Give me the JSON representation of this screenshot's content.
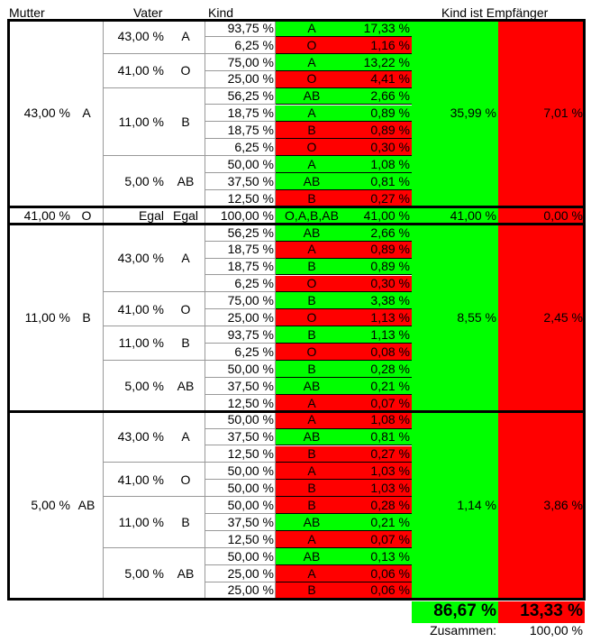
{
  "header": {
    "mother": "Mutter",
    "father": "Vater",
    "child": "Kind",
    "recipient": "Kind ist Empfänger"
  },
  "colors": {
    "good": "#00ff00",
    "bad": "#ff0000",
    "line": "#000000",
    "thin": "#999999"
  },
  "mothers": [
    {
      "pct": "43,00 %",
      "type": "A",
      "yes": "35,99 %",
      "no": "7,01 %",
      "fathers": [
        {
          "pct": "43,00 %",
          "type": "A",
          "kids": [
            {
              "p": "93,75 %",
              "t": "A",
              "v": "17,33 %",
              "ok": true
            },
            {
              "p": "6,25 %",
              "t": "O",
              "v": "1,16 %",
              "ok": false
            }
          ]
        },
        {
          "pct": "41,00 %",
          "type": "O",
          "kids": [
            {
              "p": "75,00 %",
              "t": "A",
              "v": "13,22 %",
              "ok": true
            },
            {
              "p": "25,00 %",
              "t": "O",
              "v": "4,41 %",
              "ok": false
            }
          ]
        },
        {
          "pct": "11,00 %",
          "type": "B",
          "kids": [
            {
              "p": "56,25 %",
              "t": "AB",
              "v": "2,66 %",
              "ok": true
            },
            {
              "p": "18,75 %",
              "t": "A",
              "v": "0,89 %",
              "ok": true
            },
            {
              "p": "18,75 %",
              "t": "B",
              "v": "0,89 %",
              "ok": false
            },
            {
              "p": "6,25 %",
              "t": "O",
              "v": "0,30 %",
              "ok": false
            }
          ]
        },
        {
          "pct": "5,00 %",
          "type": "AB",
          "kids": [
            {
              "p": "50,00 %",
              "t": "A",
              "v": "1,08 %",
              "ok": true
            },
            {
              "p": "37,50 %",
              "t": "AB",
              "v": "0,81 %",
              "ok": true
            },
            {
              "p": "12,50 %",
              "t": "B",
              "v": "0,27 %",
              "ok": false
            }
          ]
        }
      ]
    },
    {
      "pct": "41,00 %",
      "type": "O",
      "yes": "41,00 %",
      "no": "0,00 %",
      "fathers": [
        {
          "pct": "Egal",
          "type": "Egal",
          "kids": [
            {
              "p": "100,00 %",
              "t": "O,A,B,AB",
              "v": "41,00 %",
              "ok": true
            }
          ]
        }
      ]
    },
    {
      "pct": "11,00 %",
      "type": "B",
      "yes": "8,55 %",
      "no": "2,45 %",
      "fathers": [
        {
          "pct": "43,00 %",
          "type": "A",
          "kids": [
            {
              "p": "56,25 %",
              "t": "AB",
              "v": "2,66 %",
              "ok": true
            },
            {
              "p": "18,75 %",
              "t": "A",
              "v": "0,89 %",
              "ok": false
            },
            {
              "p": "18,75 %",
              "t": "B",
              "v": "0,89 %",
              "ok": true
            },
            {
              "p": "6,25 %",
              "t": "O",
              "v": "0,30 %",
              "ok": false
            }
          ]
        },
        {
          "pct": "41,00 %",
          "type": "O",
          "kids": [
            {
              "p": "75,00 %",
              "t": "B",
              "v": "3,38 %",
              "ok": true
            },
            {
              "p": "25,00 %",
              "t": "O",
              "v": "1,13 %",
              "ok": false
            }
          ]
        },
        {
          "pct": "11,00 %",
          "type": "B",
          "kids": [
            {
              "p": "93,75 %",
              "t": "B",
              "v": "1,13 %",
              "ok": true
            },
            {
              "p": "6,25 %",
              "t": "O",
              "v": "0,08 %",
              "ok": false
            }
          ]
        },
        {
          "pct": "5,00 %",
          "type": "AB",
          "kids": [
            {
              "p": "50,00 %",
              "t": "B",
              "v": "0,28 %",
              "ok": true
            },
            {
              "p": "37,50 %",
              "t": "AB",
              "v": "0,21 %",
              "ok": true
            },
            {
              "p": "12,50 %",
              "t": "A",
              "v": "0,07 %",
              "ok": false
            }
          ]
        }
      ]
    },
    {
      "pct": "5,00 %",
      "type": "AB",
      "yes": "1,14 %",
      "no": "3,86 %",
      "fathers": [
        {
          "pct": "43,00 %",
          "type": "A",
          "kids": [
            {
              "p": "50,00 %",
              "t": "A",
              "v": "1,08 %",
              "ok": false
            },
            {
              "p": "37,50 %",
              "t": "AB",
              "v": "0,81 %",
              "ok": true
            },
            {
              "p": "12,50 %",
              "t": "B",
              "v": "0,27 %",
              "ok": false
            }
          ]
        },
        {
          "pct": "41,00 %",
          "type": "O",
          "kids": [
            {
              "p": "50,00 %",
              "t": "A",
              "v": "1,03 %",
              "ok": false
            },
            {
              "p": "50,00 %",
              "t": "B",
              "v": "1,03 %",
              "ok": false
            }
          ]
        },
        {
          "pct": "11,00 %",
          "type": "B",
          "kids": [
            {
              "p": "50,00 %",
              "t": "B",
              "v": "0,28 %",
              "ok": false
            },
            {
              "p": "37,50 %",
              "t": "AB",
              "v": "0,21 %",
              "ok": true
            },
            {
              "p": "12,50 %",
              "t": "A",
              "v": "0,07 %",
              "ok": false
            }
          ]
        },
        {
          "pct": "5,00 %",
          "type": "AB",
          "kids": [
            {
              "p": "50,00 %",
              "t": "AB",
              "v": "0,13 %",
              "ok": true
            },
            {
              "p": "25,00 %",
              "t": "A",
              "v": "0,06 %",
              "ok": false
            },
            {
              "p": "25,00 %",
              "t": "B",
              "v": "0,06 %",
              "ok": false
            }
          ]
        }
      ]
    }
  ],
  "totals": {
    "yes": "86,67 %",
    "no": "13,33 %",
    "sum_label": "Zusammen:",
    "sum": "100,00 %"
  }
}
